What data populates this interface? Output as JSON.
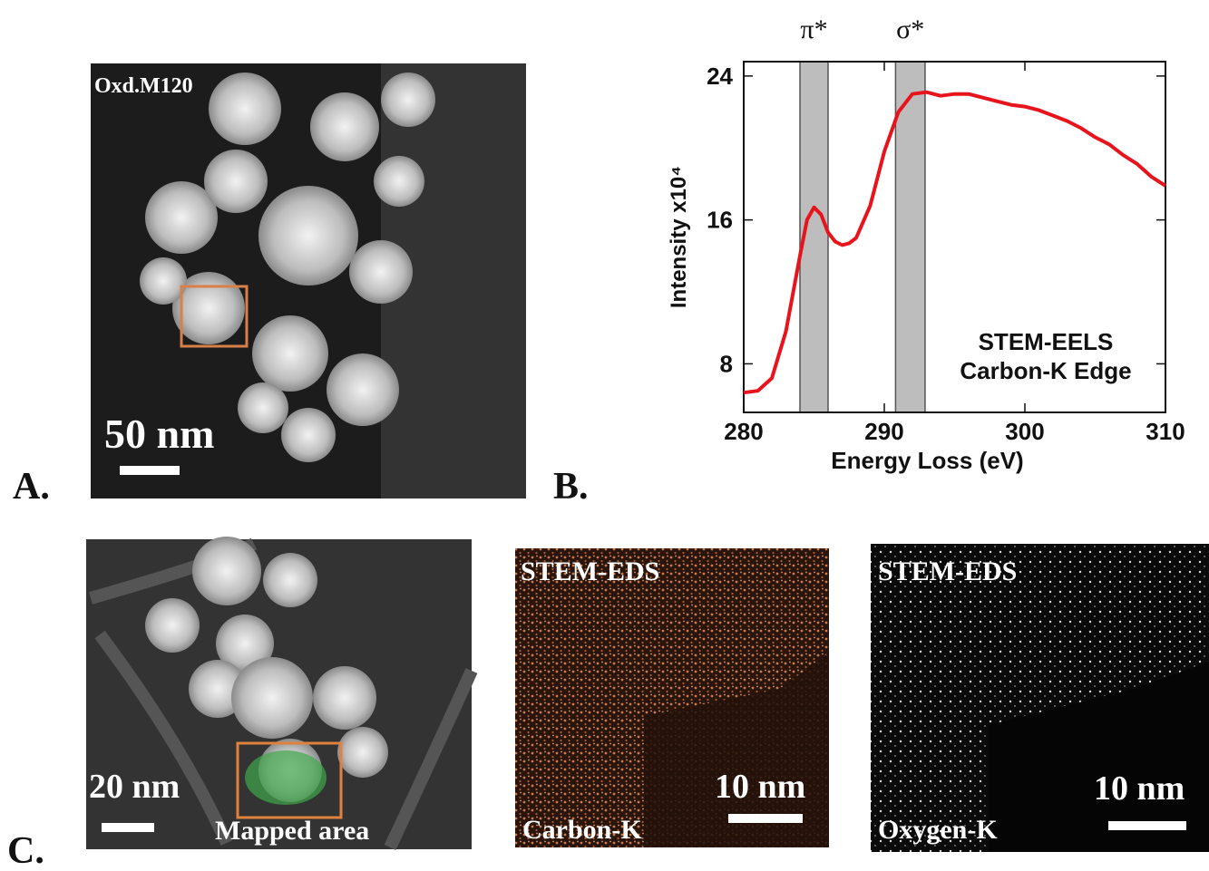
{
  "panels": {
    "a": {
      "label": "A.",
      "tag": "Oxd.M120",
      "scale": "50 nm"
    },
    "b": {
      "label": "B."
    },
    "c": {
      "label": "C.",
      "images": [
        {
          "scale": "20 nm",
          "caption": "Mapped area"
        },
        {
          "title": "STEM-EDS",
          "scale": "10 nm",
          "caption": "Carbon-K"
        },
        {
          "title": "STEM-EDS",
          "scale": "10 nm",
          "caption": "Oxygen-K"
        }
      ]
    }
  },
  "chart_data": {
    "type": "line",
    "x_label": "Energy Loss (eV)",
    "y_label": "Intensity x10⁴",
    "annotation": [
      "STEM-EELS",
      "Carbon-K Edge"
    ],
    "bands": [
      {
        "label": "π*",
        "range": [
          284,
          286
        ]
      },
      {
        "label": "σ*",
        "range": [
          290.8,
          292.9
        ]
      }
    ],
    "x": [
      280,
      281,
      282,
      283,
      284,
      284.5,
      285,
      285.5,
      286,
      286.5,
      287,
      287.5,
      288,
      289,
      290,
      291,
      292,
      293,
      294,
      295,
      296,
      297,
      298,
      299,
      300,
      301,
      302,
      303,
      304,
      305,
      306,
      307,
      308,
      309,
      310
    ],
    "values": [
      6.4,
      6.5,
      7.2,
      9.8,
      14.0,
      16.0,
      16.7,
      16.3,
      15.3,
      14.8,
      14.6,
      14.7,
      15.0,
      16.8,
      19.8,
      22.0,
      23.0,
      23.1,
      22.9,
      23.0,
      23.0,
      22.8,
      22.6,
      22.4,
      22.3,
      22.1,
      21.8,
      21.5,
      21.1,
      20.6,
      20.2,
      19.6,
      19.1,
      18.4,
      17.9
    ],
    "color": "#e8141c",
    "xlim": [
      280,
      310
    ],
    "xticks": [
      280,
      290,
      300,
      310
    ],
    "ylim": [
      5.3,
      24.8
    ],
    "yticks": [
      8,
      16,
      24
    ]
  }
}
